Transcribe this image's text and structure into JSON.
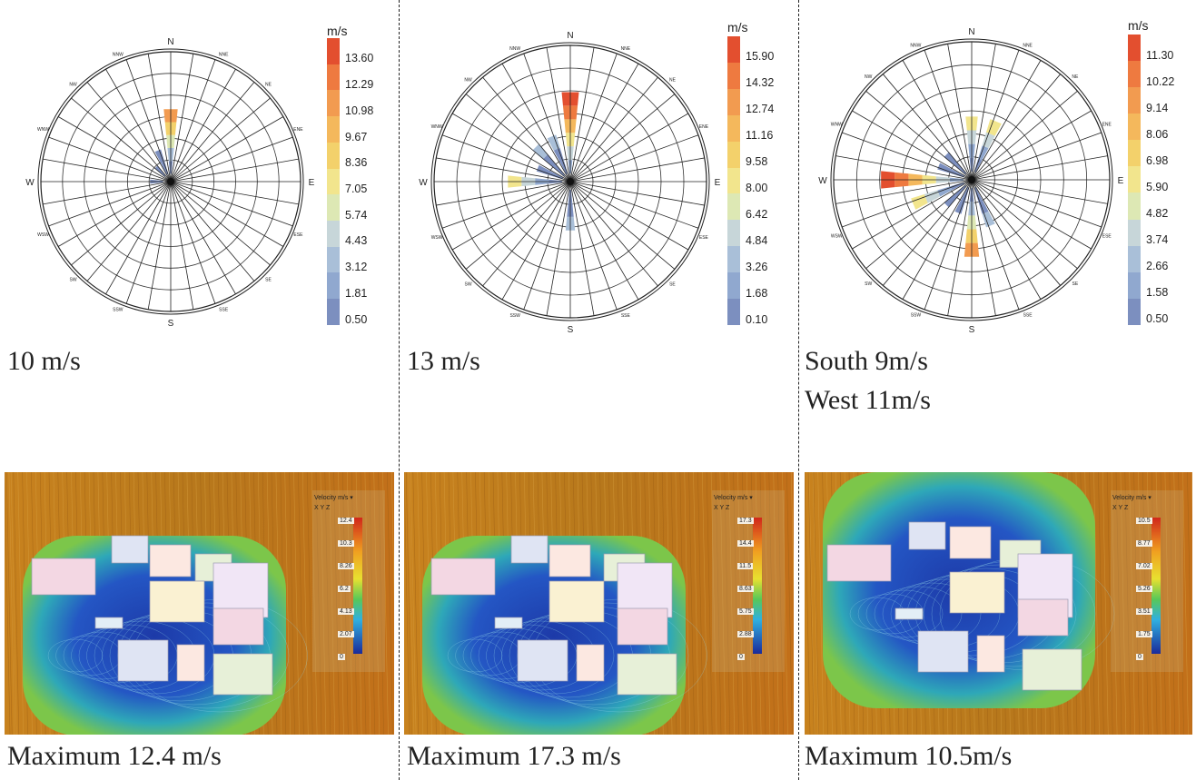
{
  "legend_unit": "m/s",
  "direction_labels": [
    "N",
    "NNE",
    "NE",
    "ENE",
    "E",
    "ESE",
    "SE",
    "SSE",
    "S",
    "SSW",
    "SW",
    "WSW",
    "W",
    "WNW",
    "NW",
    "NNW"
  ],
  "legend_colors": [
    "#e34f2f",
    "#ee7a40",
    "#f29b50",
    "#f4b85c",
    "#f3d16b",
    "#f2e58d",
    "#dde8b4",
    "#c7d6d9",
    "#a9bfd8",
    "#90a8cf",
    "#7c8fbf"
  ],
  "columns": [
    {
      "legend_ticks": [
        "13.60",
        "12.29",
        "10.98",
        "9.67",
        "8.36",
        "7.05",
        "5.74",
        "4.43",
        "3.12",
        "1.81",
        "0.50"
      ],
      "rose_caption": "10 m/s",
      "rose_caption_line2": "",
      "cfd_caption": "Maximum 12.4 m/s",
      "cfd_legend": {
        "title": "Velocity",
        "unit": "m/s",
        "axes": "X Y Z",
        "ticks": [
          "12.4",
          "10.3",
          "8.26",
          "6.2",
          "4.13",
          "2.07",
          "0"
        ]
      }
    },
    {
      "legend_ticks": [
        "15.90",
        "14.32",
        "12.74",
        "11.16",
        "9.58",
        "8.00",
        "6.42",
        "4.84",
        "3.26",
        "1.68",
        "0.10"
      ],
      "rose_caption": "13 m/s",
      "rose_caption_line2": "",
      "cfd_caption": "Maximum 17.3 m/s",
      "cfd_legend": {
        "title": "Velocity",
        "unit": "m/s",
        "axes": "X Y Z",
        "ticks": [
          "17.3",
          "14.4",
          "11.5",
          "8.63",
          "5.75",
          "2.88",
          "0"
        ]
      }
    },
    {
      "legend_ticks": [
        "11.30",
        "10.22",
        "9.14",
        "8.06",
        "6.98",
        "5.90",
        "4.82",
        "3.74",
        "2.66",
        "1.58",
        "0.50"
      ],
      "rose_caption": "South 9m/s",
      "rose_caption_line2": "West 11m/s",
      "cfd_caption": "Maximum 10.5m/s",
      "cfd_legend": {
        "title": "Velocity",
        "unit": "m/s",
        "axes": "X Y Z",
        "ticks": [
          "10.5",
          "8.77",
          "7.02",
          "5.26",
          "3.51",
          "1.75",
          "0"
        ]
      }
    }
  ],
  "rose_bars": [
    [
      {
        "dir": 0,
        "len": 5
      },
      {
        "dir": 15,
        "len": 2
      },
      {
        "dir": 14,
        "len": 1
      },
      {
        "dir": 12,
        "len": 1
      }
    ],
    [
      {
        "dir": 0,
        "len": 6
      },
      {
        "dir": 15,
        "len": 3
      },
      {
        "dir": 14,
        "len": 3
      },
      {
        "dir": 13,
        "len": 2
      },
      {
        "dir": 12,
        "len": 4
      },
      {
        "dir": 8,
        "len": 3
      }
    ],
    [
      {
        "dir": 0,
        "len": 4
      },
      {
        "dir": 1,
        "len": 4
      },
      {
        "dir": 14,
        "len": 2
      },
      {
        "dir": 13,
        "len": 2
      },
      {
        "dir": 12,
        "len": 6
      },
      {
        "dir": 11,
        "len": 4
      },
      {
        "dir": 10,
        "len": 2
      },
      {
        "dir": 9,
        "len": 2
      },
      {
        "dir": 8,
        "len": 5
      },
      {
        "dir": 7,
        "len": 3
      }
    ]
  ]
}
